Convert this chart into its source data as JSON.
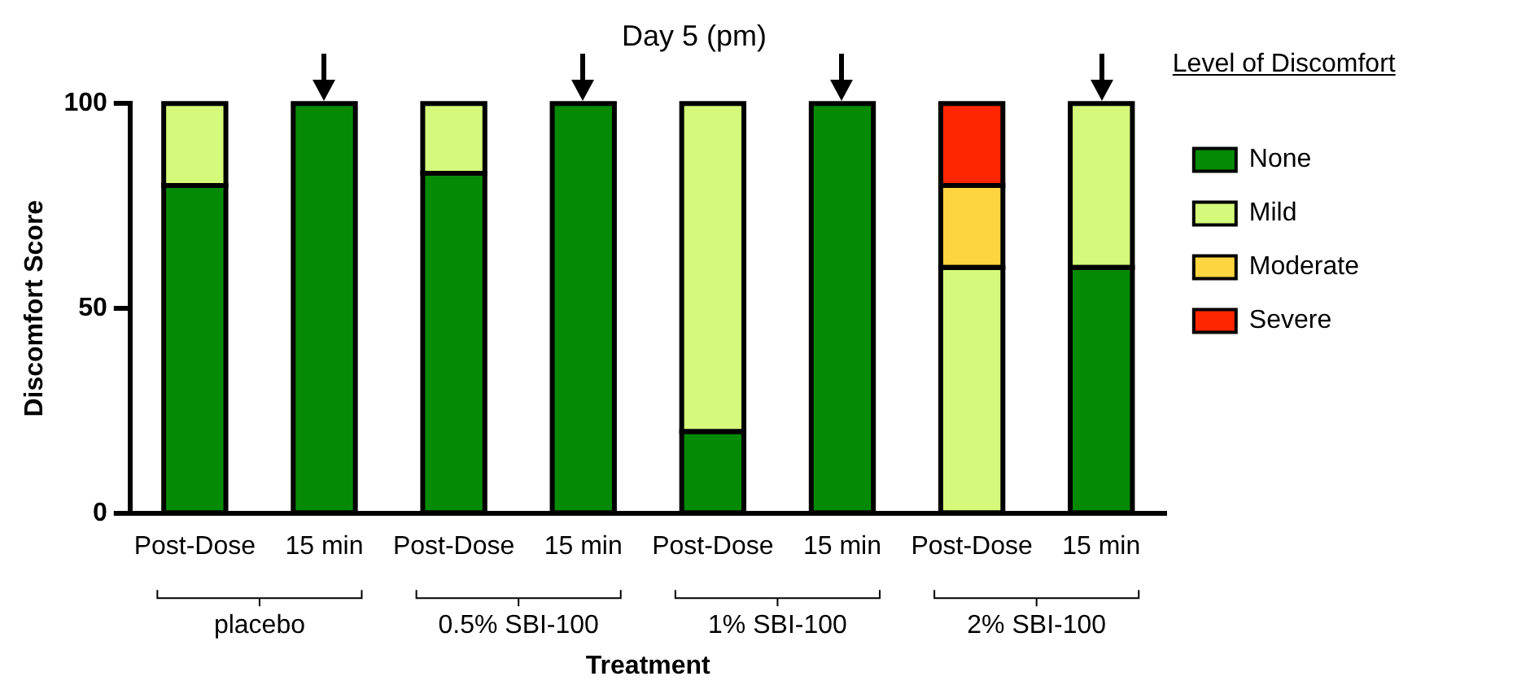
{
  "chart_data": {
    "type": "bar",
    "title": "Day 5 (pm)",
    "xlabel": "Treatment",
    "ylabel": "Discomfort Score",
    "legend_title": "Level of Discomfort",
    "categories": [
      "Post-Dose",
      "15 min",
      "Post-Dose",
      "15 min",
      "Post-Dose",
      "15 min",
      "Post-Dose",
      "15 min"
    ],
    "series": [
      {
        "name": "None",
        "color": "#058a05",
        "values": [
          80,
          100,
          83,
          100,
          20,
          100,
          0,
          60
        ]
      },
      {
        "name": "Mild",
        "color": "#d5f97a",
        "values": [
          20,
          0,
          17,
          0,
          80,
          0,
          60,
          40
        ]
      },
      {
        "name": "Moderate",
        "color": "#fdd540",
        "values": [
          0,
          0,
          0,
          0,
          0,
          0,
          20,
          0
        ]
      },
      {
        "name": "Severe",
        "color": "#fd2600",
        "values": [
          0,
          0,
          0,
          0,
          0,
          0,
          20,
          0
        ]
      }
    ],
    "stacked": true,
    "ylim": [
      0,
      100
    ],
    "yticks": [
      0,
      50,
      100
    ],
    "grid": false,
    "legend": "right",
    "annotations": [
      "placebo",
      "0.5% SBI-100",
      "1% SBI-100",
      "2% SBI-100"
    ]
  }
}
